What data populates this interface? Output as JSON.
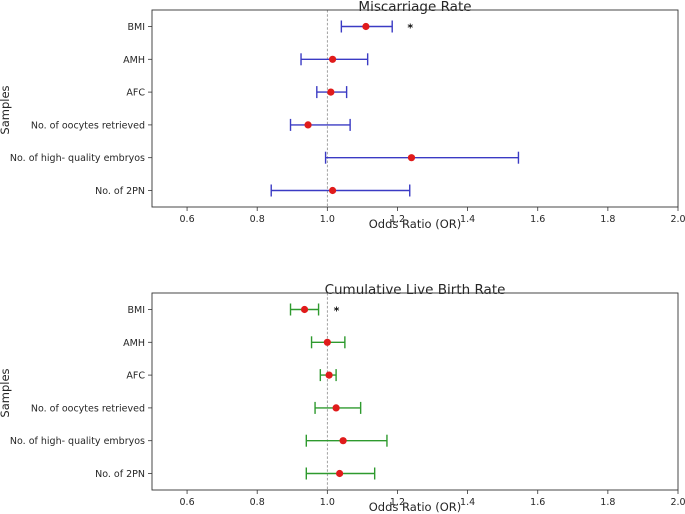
{
  "chart_data": [
    {
      "type": "forest",
      "title": "Miscarriage Rate",
      "xlabel": "Odds Ratio (OR)",
      "ylabel": "Samples",
      "xlim": [
        0.5,
        2.0
      ],
      "xticks": [
        0.6,
        0.8,
        1.0,
        1.2,
        1.4,
        1.6,
        1.8,
        2.0
      ],
      "xtick_labels": [
        "0.6",
        "0.8",
        "1.0",
        "1.2",
        "1.4",
        "1.6",
        "1.8",
        "2.0"
      ],
      "reference_line": 1.0,
      "color": "#3b3bc4",
      "point_color": "#e01b1b",
      "categories": [
        "BMI",
        "AMH",
        "AFC",
        "No. of oocytes retrieved",
        "No. of high- quality embryos",
        "No. of 2PN"
      ],
      "or": [
        1.11,
        1.015,
        1.01,
        0.945,
        1.24,
        1.015
      ],
      "ci_low": [
        1.04,
        0.925,
        0.97,
        0.895,
        0.995,
        0.84
      ],
      "ci_high": [
        1.185,
        1.115,
        1.055,
        1.065,
        1.545,
        1.235
      ],
      "annotations": [
        {
          "category": "BMI",
          "text": "*"
        }
      ]
    },
    {
      "type": "forest",
      "title": "Cumulative Live Birth Rate",
      "xlabel": "Odds Ratio (OR)",
      "ylabel": "Samples",
      "xlim": [
        0.5,
        2.0
      ],
      "xticks": [
        0.6,
        0.8,
        1.0,
        1.2,
        1.4,
        1.6,
        1.8,
        2.0
      ],
      "xtick_labels": [
        "0.6",
        "0.8",
        "1.0",
        "1.2",
        "1.4",
        "1.6",
        "1.8",
        "2.0"
      ],
      "reference_line": 1.0,
      "color": "#2e9a2e",
      "point_color": "#e01b1b",
      "categories": [
        "BMI",
        "AMH",
        "AFC",
        "No. of oocytes retrieved",
        "No. of high- quality embryos",
        "No. of 2PN"
      ],
      "or": [
        0.935,
        1.0,
        1.005,
        1.025,
        1.045,
        1.035
      ],
      "ci_low": [
        0.895,
        0.955,
        0.98,
        0.965,
        0.94,
        0.94
      ],
      "ci_high": [
        0.975,
        1.05,
        1.025,
        1.095,
        1.17,
        1.135
      ],
      "annotations": [
        {
          "category": "BMI",
          "text": "*"
        }
      ]
    }
  ]
}
